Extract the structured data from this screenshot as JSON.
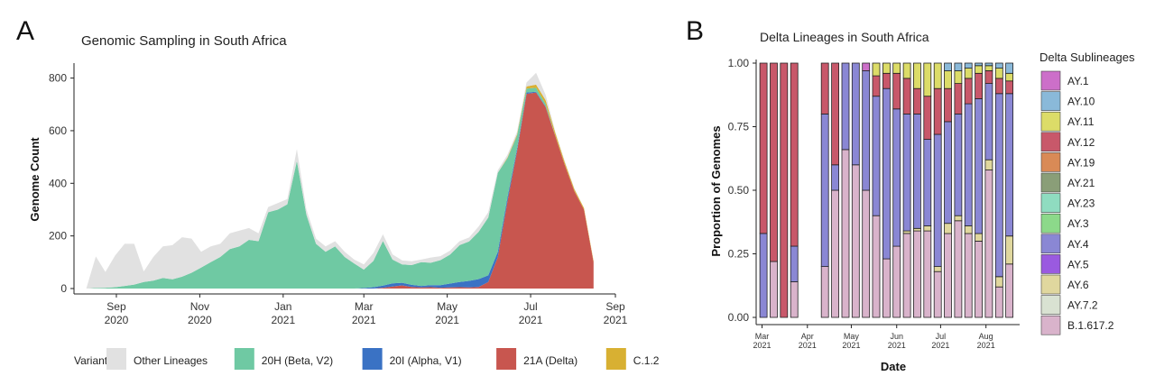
{
  "panels": {
    "a_letter": "A",
    "b_letter": "B"
  },
  "chart_data": [
    {
      "type": "area",
      "stacked": true,
      "title": "Genomic Sampling in South Africa",
      "xlabel": "",
      "ylabel": "Genome Count",
      "ylim": [
        0,
        850
      ],
      "yticks": [
        0,
        200,
        400,
        600,
        800
      ],
      "xrange": [
        "2020-08-01",
        "2021-09-01"
      ],
      "xticks": [
        {
          "date": "2020-09-01",
          "label": [
            "Sep",
            "2020"
          ]
        },
        {
          "date": "2020-11-01",
          "label": [
            "Nov",
            "2020"
          ]
        },
        {
          "date": "2021-01-01",
          "label": [
            "Jan",
            "2021"
          ]
        },
        {
          "date": "2021-03-01",
          "label": [
            "Mar",
            "2021"
          ]
        },
        {
          "date": "2021-05-01",
          "label": [
            "May",
            "2021"
          ]
        },
        {
          "date": "2021-07-01",
          "label": [
            "Jul",
            "2021"
          ]
        },
        {
          "date": "2021-09-01",
          "label": [
            "Sep",
            "2021"
          ]
        }
      ],
      "grid": false,
      "legend_position": "bottom",
      "legend_title": "Variants",
      "x": [
        "2020-08-10",
        "2020-08-17",
        "2020-08-24",
        "2020-08-31",
        "2020-09-07",
        "2020-09-14",
        "2020-09-21",
        "2020-09-28",
        "2020-10-05",
        "2020-10-12",
        "2020-10-19",
        "2020-10-26",
        "2020-11-02",
        "2020-11-09",
        "2020-11-16",
        "2020-11-23",
        "2020-11-30",
        "2020-12-07",
        "2020-12-14",
        "2020-12-21",
        "2020-12-28",
        "2021-01-04",
        "2021-01-11",
        "2021-01-18",
        "2021-01-25",
        "2021-02-01",
        "2021-02-08",
        "2021-02-15",
        "2021-02-22",
        "2021-03-01",
        "2021-03-08",
        "2021-03-15",
        "2021-03-22",
        "2021-03-29",
        "2021-04-05",
        "2021-04-12",
        "2021-04-19",
        "2021-04-26",
        "2021-05-03",
        "2021-05-10",
        "2021-05-17",
        "2021-05-24",
        "2021-05-31",
        "2021-06-07",
        "2021-06-14",
        "2021-06-21",
        "2021-06-28",
        "2021-07-05",
        "2021-07-12",
        "2021-07-19",
        "2021-07-26",
        "2021-08-02",
        "2021-08-09",
        "2021-08-16"
      ],
      "series": [
        {
          "name": "21A (Delta)",
          "color": "#c8564f",
          "values": [
            0,
            0,
            0,
            0,
            0,
            0,
            0,
            0,
            0,
            0,
            0,
            0,
            0,
            0,
            0,
            0,
            0,
            0,
            0,
            0,
            0,
            0,
            0,
            0,
            0,
            0,
            0,
            0,
            0,
            0,
            0,
            3,
            8,
            12,
            6,
            4,
            5,
            3,
            4,
            5,
            4,
            6,
            25,
            120,
            330,
            520,
            740,
            745,
            690,
            580,
            470,
            370,
            300,
            100
          ]
        },
        {
          "name": "20I (Alpha, V1)",
          "color": "#3a72c4",
          "values": [
            0,
            0,
            0,
            0,
            0,
            0,
            0,
            0,
            0,
            0,
            0,
            0,
            0,
            0,
            0,
            0,
            0,
            0,
            0,
            0,
            0,
            0,
            0,
            0,
            0,
            0,
            0,
            0,
            0,
            2,
            5,
            8,
            12,
            10,
            8,
            6,
            8,
            10,
            15,
            20,
            25,
            30,
            25,
            20,
            15,
            10,
            5,
            3,
            2,
            1,
            0,
            0,
            0,
            0
          ]
        },
        {
          "name": "20H (Beta, V2)",
          "color": "#6fc9a3",
          "values": [
            0,
            2,
            3,
            5,
            10,
            15,
            25,
            30,
            40,
            35,
            45,
            60,
            80,
            100,
            120,
            150,
            160,
            185,
            180,
            290,
            300,
            320,
            485,
            280,
            170,
            140,
            160,
            120,
            95,
            70,
            100,
            170,
            90,
            70,
            75,
            90,
            85,
            95,
            110,
            140,
            150,
            180,
            220,
            300,
            150,
            50,
            15,
            15,
            10,
            0,
            0,
            0,
            0,
            0
          ]
        },
        {
          "name": "C.1.2",
          "color": "#d8b032",
          "values": [
            0,
            0,
            0,
            0,
            0,
            0,
            0,
            0,
            0,
            0,
            0,
            0,
            0,
            0,
            0,
            0,
            0,
            0,
            0,
            0,
            0,
            0,
            0,
            0,
            0,
            0,
            0,
            0,
            0,
            0,
            0,
            0,
            0,
            0,
            0,
            0,
            0,
            0,
            0,
            0,
            0,
            0,
            0,
            0,
            3,
            5,
            8,
            12,
            14,
            12,
            10,
            8,
            6,
            5
          ]
        },
        {
          "name": "Other Lineages",
          "color": "#e1e1e1",
          "values": [
            0,
            120,
            60,
            120,
            160,
            155,
            40,
            90,
            120,
            130,
            150,
            130,
            60,
            60,
            50,
            60,
            60,
            45,
            30,
            20,
            25,
            20,
            45,
            20,
            20,
            20,
            20,
            20,
            15,
            20,
            30,
            25,
            20,
            15,
            15,
            10,
            20,
            15,
            15,
            15,
            15,
            20,
            20,
            10,
            10,
            10,
            15,
            45,
            20,
            5,
            5,
            3,
            0,
            0
          ]
        }
      ],
      "legend_order": [
        "Other Lineages",
        "20H (Beta, V2)",
        "20I (Alpha, V1)",
        "21A (Delta)",
        "C.1.2"
      ]
    },
    {
      "type": "bar",
      "stacked": true,
      "title": "Delta Lineages in South Africa",
      "xlabel": "Date",
      "ylabel": "Proportion of Genomes",
      "ylim": [
        0,
        1
      ],
      "yticks": [
        "0.00",
        "0.25",
        "0.50",
        "0.75",
        "1.00"
      ],
      "xrange": [
        "2021-02-25",
        "2021-08-24"
      ],
      "xticks": [
        {
          "date": "2021-03-01",
          "label": [
            "Mar",
            "2021"
          ]
        },
        {
          "date": "2021-04-01",
          "label": [
            "Apr",
            "2021"
          ]
        },
        {
          "date": "2021-05-01",
          "label": [
            "May",
            "2021"
          ]
        },
        {
          "date": "2021-06-01",
          "label": [
            "Jun",
            "2021"
          ]
        },
        {
          "date": "2021-07-01",
          "label": [
            "Jul",
            "2021"
          ]
        },
        {
          "date": "2021-08-01",
          "label": [
            "Aug",
            "2021"
          ]
        }
      ],
      "grid": false,
      "legend_position": "right",
      "legend_title": "Delta Sublineages",
      "legend": [
        {
          "name": "AY.1",
          "color": "#cc6fc9"
        },
        {
          "name": "AY.10",
          "color": "#8ab9d9"
        },
        {
          "name": "AY.11",
          "color": "#dcdc68"
        },
        {
          "name": "AY.12",
          "color": "#c8586a"
        },
        {
          "name": "AY.19",
          "color": "#d98a56"
        },
        {
          "name": "AY.21",
          "color": "#8a9e78"
        },
        {
          "name": "AY.23",
          "color": "#8fdcc0"
        },
        {
          "name": "AY.3",
          "color": "#8cd98a"
        },
        {
          "name": "AY.4",
          "color": "#8a87d4"
        },
        {
          "name": "AY.5",
          "color": "#9a5ae0"
        },
        {
          "name": "AY.6",
          "color": "#e0d79e"
        },
        {
          "name": "AY.7.2",
          "color": "#d9e2d2"
        },
        {
          "name": "B.1.617.2",
          "color": "#d9b3cb"
        }
      ],
      "bars": [
        {
          "date": "2021-03-02",
          "B.1.617.2": 0.0,
          "AY.4": 0.33,
          "AY.12": 0.67
        },
        {
          "date": "2021-03-09",
          "B.1.617.2": 0.22,
          "AY.12": 0.78
        },
        {
          "date": "2021-03-16",
          "AY.12": 1.0
        },
        {
          "date": "2021-03-23",
          "B.1.617.2": 0.14,
          "AY.4": 0.14,
          "AY.12": 0.72
        },
        {
          "date": "2021-04-13",
          "B.1.617.2": 0.2,
          "AY.4": 0.6,
          "AY.12": 0.2
        },
        {
          "date": "2021-04-20",
          "B.1.617.2": 0.5,
          "AY.4": 0.1,
          "AY.12": 0.4
        },
        {
          "date": "2021-04-27",
          "B.1.617.2": 0.66,
          "AY.4": 0.34
        },
        {
          "date": "2021-05-04",
          "B.1.617.2": 0.6,
          "AY.4": 0.4
        },
        {
          "date": "2021-05-11",
          "B.1.617.2": 0.5,
          "AY.4": 0.47,
          "AY.1": 0.03
        },
        {
          "date": "2021-05-18",
          "B.1.617.2": 0.4,
          "AY.4": 0.47,
          "AY.12": 0.08,
          "AY.11": 0.05
        },
        {
          "date": "2021-05-25",
          "B.1.617.2": 0.23,
          "AY.4": 0.67,
          "AY.12": 0.06,
          "AY.11": 0.04
        },
        {
          "date": "2021-06-01",
          "B.1.617.2": 0.28,
          "AY.4": 0.54,
          "AY.12": 0.14,
          "AY.11": 0.04
        },
        {
          "date": "2021-06-08",
          "B.1.617.2": 0.33,
          "AY.6": 0.01,
          "AY.4": 0.46,
          "AY.12": 0.14,
          "AY.11": 0.06
        },
        {
          "date": "2021-06-15",
          "B.1.617.2": 0.34,
          "AY.6": 0.01,
          "AY.4": 0.45,
          "AY.12": 0.1,
          "AY.11": 0.1
        },
        {
          "date": "2021-06-22",
          "B.1.617.2": 0.34,
          "AY.6": 0.02,
          "AY.4": 0.34,
          "AY.12": 0.17,
          "AY.11": 0.13
        },
        {
          "date": "2021-06-29",
          "B.1.617.2": 0.18,
          "AY.6": 0.02,
          "AY.4": 0.52,
          "AY.12": 0.18,
          "AY.11": 0.1
        },
        {
          "date": "2021-07-06",
          "B.1.617.2": 0.33,
          "AY.6": 0.04,
          "AY.4": 0.4,
          "AY.12": 0.13,
          "AY.11": 0.07,
          "AY.10": 0.03
        },
        {
          "date": "2021-07-13",
          "B.1.617.2": 0.38,
          "AY.6": 0.02,
          "AY.4": 0.4,
          "AY.12": 0.12,
          "AY.11": 0.05,
          "AY.10": 0.03
        },
        {
          "date": "2021-07-20",
          "B.1.617.2": 0.33,
          "AY.6": 0.03,
          "AY.4": 0.48,
          "AY.12": 0.1,
          "AY.11": 0.04,
          "AY.10": 0.02
        },
        {
          "date": "2021-07-27",
          "B.1.617.2": 0.3,
          "AY.6": 0.03,
          "AY.4": 0.53,
          "AY.12": 0.1,
          "AY.11": 0.03,
          "AY.10": 0.01
        },
        {
          "date": "2021-08-03",
          "B.1.617.2": 0.58,
          "AY.6": 0.04,
          "AY.4": 0.3,
          "AY.12": 0.05,
          "AY.11": 0.02,
          "AY.10": 0.01
        },
        {
          "date": "2021-08-10",
          "B.1.617.2": 0.12,
          "AY.6": 0.04,
          "AY.4": 0.72,
          "AY.12": 0.06,
          "AY.11": 0.04,
          "AY.10": 0.02
        },
        {
          "date": "2021-08-17",
          "B.1.617.2": 0.21,
          "AY.6": 0.11,
          "AY.4": 0.56,
          "AY.12": 0.05,
          "AY.11": 0.03,
          "AY.10": 0.04
        }
      ]
    }
  ]
}
